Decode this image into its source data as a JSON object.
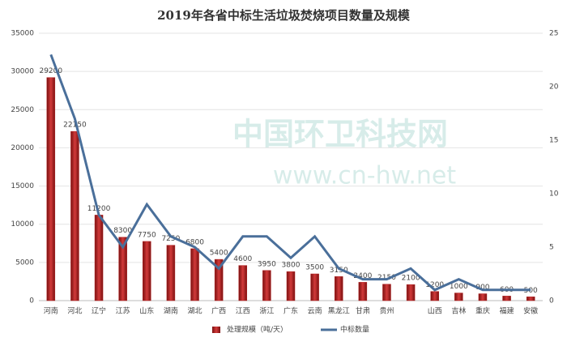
{
  "chart_data": {
    "type": "bar-line",
    "title": "2019年各省中标生活垃圾焚烧项目数量及规模",
    "categories": [
      "河南",
      "河北",
      "辽宁",
      "江苏",
      "山东",
      "湖南",
      "湖北",
      "广西",
      "江西",
      "浙江",
      "广东",
      "云南",
      "黑龙江",
      "甘肃",
      "贵州",
      null,
      "山西",
      "吉林",
      "重庆",
      "福建",
      "安徽"
    ],
    "series": [
      {
        "name": "处理规模（吨/天）",
        "type": "bar",
        "color": "#b22222",
        "values": [
          29200,
          22150,
          11200,
          8300,
          7750,
          7250,
          6800,
          5400,
          4600,
          3950,
          3800,
          3500,
          3150,
          2400,
          2150,
          2100,
          1200,
          1000,
          900,
          600,
          500
        ]
      },
      {
        "name": "中标数量",
        "type": "line",
        "axis": "y2",
        "color": "#4a6f9a",
        "values": [
          23,
          17,
          8,
          5,
          9,
          6,
          5,
          3,
          6,
          6,
          4,
          6,
          3,
          2,
          2,
          3,
          1,
          2,
          1,
          1,
          1
        ]
      }
    ],
    "ylim": [
      0,
      35000
    ],
    "yticks": [
      0,
      5000,
      10000,
      15000,
      20000,
      25000,
      30000,
      35000
    ],
    "y2lim": [
      0,
      25
    ],
    "y2ticks": [
      0,
      5,
      10,
      15,
      20,
      25
    ],
    "grid": true,
    "legend": "bottom",
    "watermark": [
      "中国环卫科技网",
      "www.cn-hw.net"
    ]
  }
}
